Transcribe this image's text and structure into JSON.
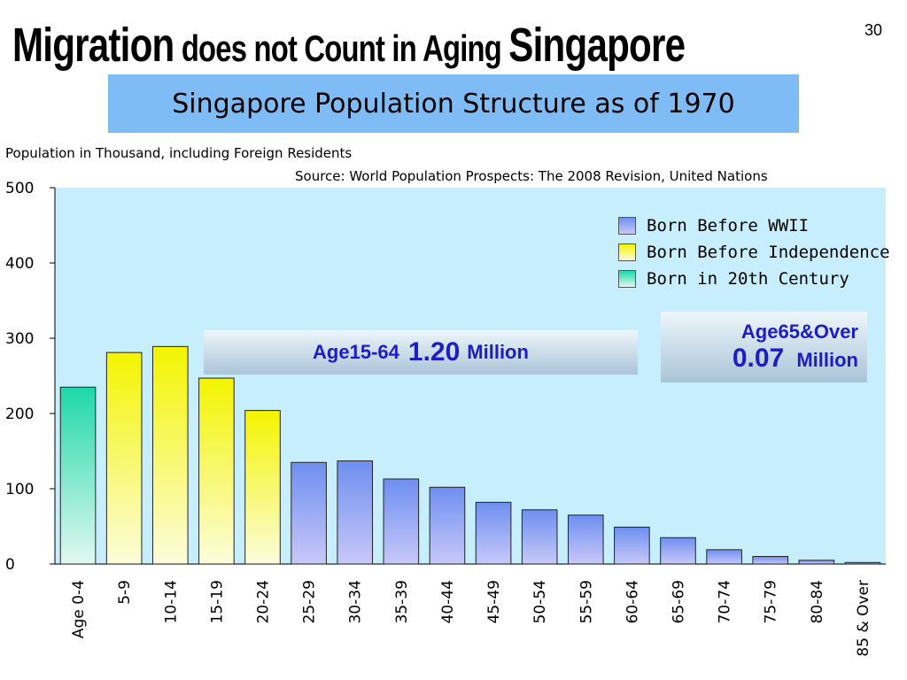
{
  "slide": {
    "title_part1": "Migration",
    "title_part2": " does not Count in Aging ",
    "title_part3": "Singapore",
    "page_number": "30"
  },
  "subtitle": "Singapore Population Structure as of 1970",
  "notes": {
    "units": "Population in Thousand, including Foreign Residents",
    "source": "Source: World Population Prospects: The 2008 Revision, United Nations"
  },
  "callouts": {
    "working_label": "Age15-64 ",
    "working_value": "1.20",
    "working_unit": " Million",
    "elderly_label": "Age65&Over",
    "elderly_value": "0.07",
    "elderly_unit": " Million"
  },
  "chart_data": {
    "type": "bar",
    "title": "",
    "xlabel": "",
    "ylabel": "",
    "ylim": [
      0,
      500
    ],
    "yticks": [
      0,
      100,
      200,
      300,
      400,
      500
    ],
    "grid": false,
    "legend_position": "top-right",
    "categories": [
      "Age 0-4",
      "5-9",
      "10-14",
      "15-19",
      "20-24",
      "25-29",
      "30-34",
      "35-39",
      "40-44",
      "45-49",
      "50-54",
      "55-59",
      "60-64",
      "65-69",
      "70-74",
      "75-79",
      "80-84",
      "85 & Over"
    ],
    "values": [
      235,
      281,
      289,
      247,
      204,
      135,
      137,
      113,
      102,
      82,
      72,
      65,
      49,
      35,
      19,
      10,
      5,
      2
    ],
    "groups": [
      "century",
      "indep",
      "indep",
      "indep",
      "indep",
      "wwii",
      "wwii",
      "wwii",
      "wwii",
      "wwii",
      "wwii",
      "wwii",
      "wwii",
      "wwii",
      "wwii",
      "wwii",
      "wwii",
      "wwii"
    ],
    "legend": [
      {
        "key": "wwii",
        "name": "Born Before WWII",
        "color_top": "#6e8ff0",
        "color_bottom": "#c8c8f8"
      },
      {
        "key": "indep",
        "name": "Born Before Independence",
        "color_top": "#f4f400",
        "color_bottom": "#fcfcdc"
      },
      {
        "key": "century",
        "name": "Born in 20th Century",
        "color_top": "#1ed8a8",
        "color_bottom": "#e2f8f0"
      }
    ]
  }
}
